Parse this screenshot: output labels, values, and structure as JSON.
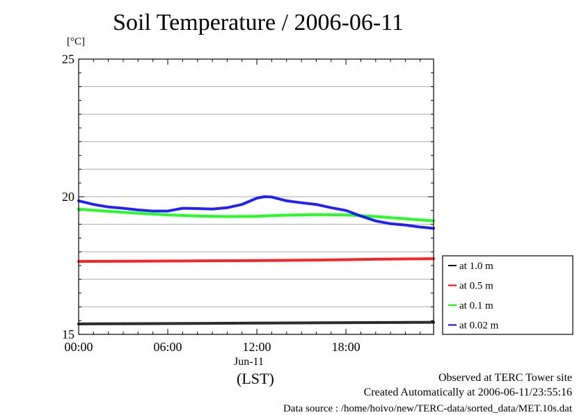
{
  "chart_data": {
    "type": "line",
    "title": "Soil Temperature / 2006-06-11",
    "ylabel": "[°C]",
    "ylim": [
      15,
      25
    ],
    "y_ticks": [
      "15",
      "20",
      "25"
    ],
    "xlim_hours": [
      0,
      23.9
    ],
    "x_ticks": [
      {
        "value": 0,
        "label": "00:00"
      },
      {
        "value": 6,
        "label": "06:00"
      },
      {
        "value": 12,
        "label": "12:00"
      },
      {
        "value": 18,
        "label": "18:00"
      }
    ],
    "x_date_label": "Jun-11",
    "x_unit_label": "(LST)",
    "grid": true,
    "legend_position": "right",
    "series": [
      {
        "name": "at 1.0 m",
        "color": "#000000",
        "x": [
          0,
          4,
          8,
          12,
          16,
          20,
          23.9
        ],
        "y": [
          15.38,
          15.39,
          15.4,
          15.41,
          15.42,
          15.43,
          15.44
        ]
      },
      {
        "name": "at 0.5 m",
        "color": "#ff0000",
        "x": [
          0,
          4,
          8,
          12,
          16,
          20,
          23.9
        ],
        "y": [
          17.65,
          17.66,
          17.67,
          17.68,
          17.7,
          17.73,
          17.75
        ]
      },
      {
        "name": "at 0.1 m",
        "color": "#00ff00",
        "x": [
          0,
          2,
          4,
          6,
          8,
          10,
          12,
          14,
          16,
          18,
          20,
          22,
          23.9
        ],
        "y": [
          19.55,
          19.47,
          19.4,
          19.34,
          19.3,
          19.28,
          19.29,
          19.33,
          19.35,
          19.34,
          19.28,
          19.2,
          19.12
        ]
      },
      {
        "name": "at 0.02 m",
        "color": "#0000ff",
        "x": [
          0,
          1,
          2,
          3,
          4,
          5,
          6,
          7,
          8,
          9,
          10,
          11,
          12,
          12.5,
          13,
          13.5,
          14,
          15,
          16,
          17,
          18,
          19,
          20,
          21,
          22,
          23,
          23.9
        ],
        "y": [
          19.85,
          19.72,
          19.63,
          19.58,
          19.52,
          19.48,
          19.48,
          19.58,
          19.57,
          19.55,
          19.6,
          19.72,
          19.95,
          20.0,
          19.99,
          19.92,
          19.85,
          19.78,
          19.72,
          19.6,
          19.5,
          19.3,
          19.12,
          19.02,
          18.97,
          18.9,
          18.85
        ]
      }
    ]
  },
  "footer": {
    "line1": "Observed at TERC Tower site",
    "line2": "Created Automatically at 2006-06-11/23:55:16",
    "line3": "Data source : /home/hoivo/new/TERC-data/sorted_data/MET.10s.dat"
  }
}
